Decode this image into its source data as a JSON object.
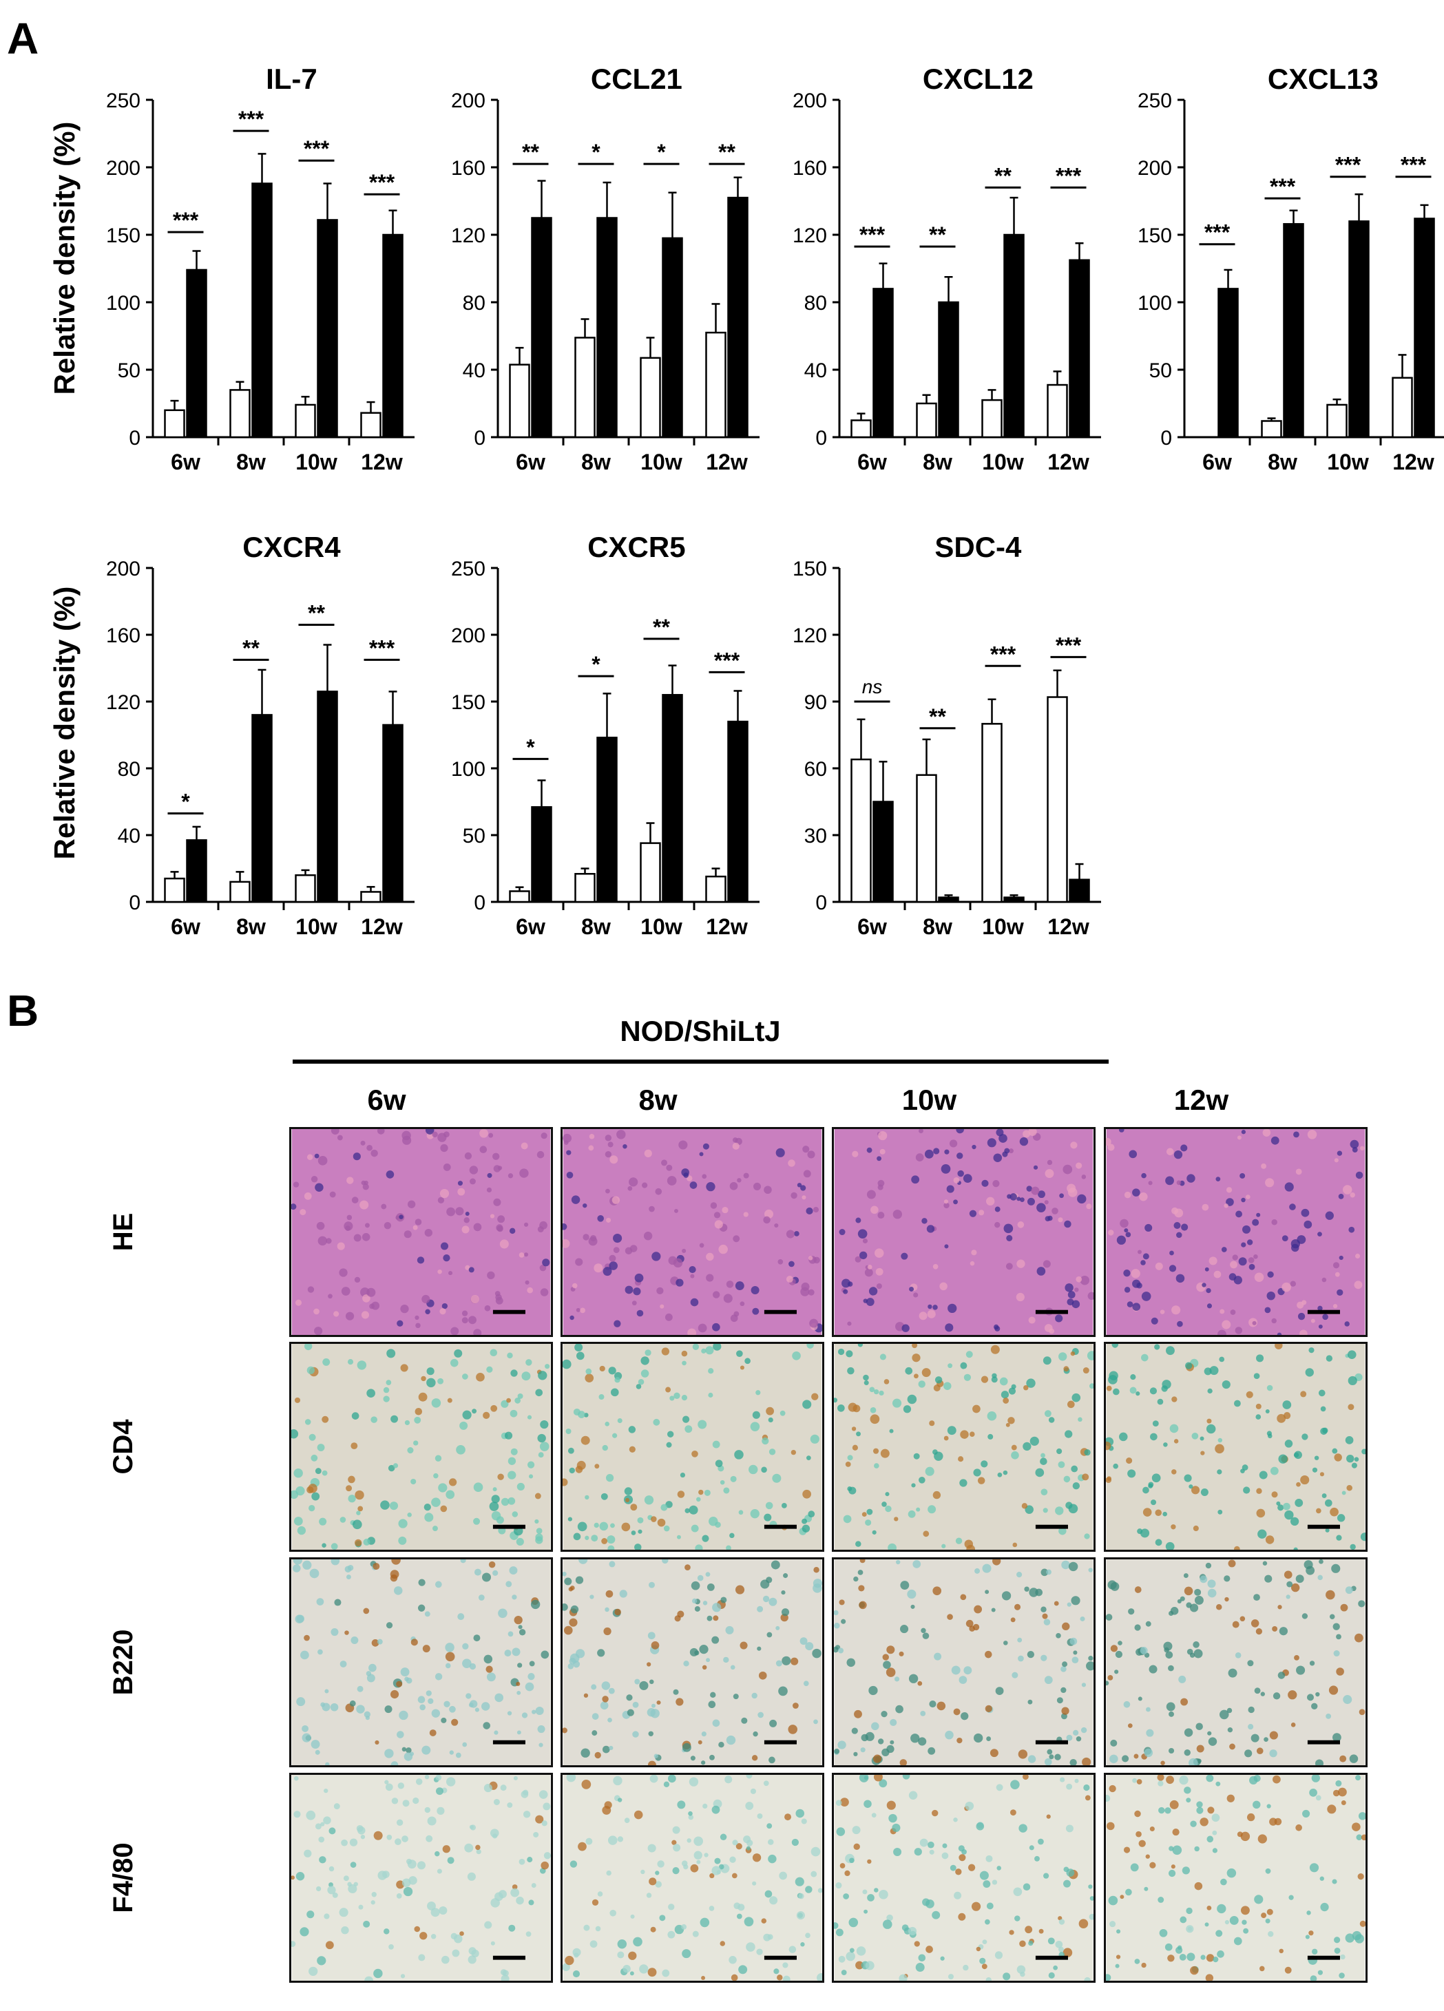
{
  "panel_labels": {
    "a": "A",
    "b": "B"
  },
  "ylabel": "Relative density (%)",
  "categories": [
    "6w",
    "8w",
    "10w",
    "12w"
  ],
  "chart_data": [
    {
      "type": "bar",
      "title": "IL-7",
      "ylim": [
        0,
        250
      ],
      "ticks": [
        0,
        50,
        100,
        150,
        200,
        250
      ],
      "categories": [
        "6w",
        "8w",
        "10w",
        "12w"
      ],
      "series": [
        {
          "values": [
            20,
            35,
            24,
            18
          ],
          "errors": [
            7,
            6,
            6,
            8
          ],
          "fill": "#ffffff"
        },
        {
          "values": [
            124,
            188,
            161,
            150
          ],
          "errors": [
            14,
            22,
            27,
            18
          ],
          "fill": "#000000"
        }
      ],
      "significance": [
        "***",
        "***",
        "***",
        "***"
      ],
      "sig_levels": [
        152,
        227,
        205,
        180
      ]
    },
    {
      "type": "bar",
      "title": "CCL21",
      "ylim": [
        0,
        200
      ],
      "ticks": [
        0,
        40,
        80,
        120,
        160,
        200
      ],
      "categories": [
        "6w",
        "8w",
        "10w",
        "12w"
      ],
      "series": [
        {
          "values": [
            43,
            59,
            47,
            62
          ],
          "errors": [
            10,
            11,
            12,
            17
          ],
          "fill": "#ffffff"
        },
        {
          "values": [
            130,
            130,
            118,
            142
          ],
          "errors": [
            22,
            21,
            27,
            12
          ],
          "fill": "#000000"
        }
      ],
      "significance": [
        "**",
        "*",
        "*",
        "**"
      ],
      "sig_levels": [
        162,
        162,
        162,
        162
      ]
    },
    {
      "type": "bar",
      "title": "CXCL12",
      "ylim": [
        0,
        200
      ],
      "ticks": [
        0,
        40,
        80,
        120,
        160,
        200
      ],
      "categories": [
        "6w",
        "8w",
        "10w",
        "12w"
      ],
      "series": [
        {
          "values": [
            10,
            20,
            22,
            31
          ],
          "errors": [
            4,
            5,
            6,
            8
          ],
          "fill": "#ffffff"
        },
        {
          "values": [
            88,
            80,
            120,
            105
          ],
          "errors": [
            15,
            15,
            22,
            10
          ],
          "fill": "#000000"
        }
      ],
      "significance": [
        "***",
        "**",
        "**",
        "***"
      ],
      "sig_levels": [
        113,
        113,
        148,
        148
      ]
    },
    {
      "type": "bar",
      "title": "CXCL13",
      "ylim": [
        0,
        250
      ],
      "ticks": [
        0,
        50,
        100,
        150,
        200,
        250
      ],
      "categories": [
        "6w",
        "8w",
        "10w",
        "12w"
      ],
      "series": [
        {
          "values": [
            0,
            12,
            24,
            44
          ],
          "errors": [
            0,
            2,
            4,
            17
          ],
          "fill": "#ffffff"
        },
        {
          "values": [
            110,
            158,
            160,
            162
          ],
          "errors": [
            14,
            10,
            20,
            10
          ],
          "fill": "#000000"
        }
      ],
      "significance": [
        "***",
        "***",
        "***",
        "***"
      ],
      "sig_levels": [
        143,
        177,
        193,
        193
      ]
    },
    {
      "type": "bar",
      "title": "CXCR4",
      "ylim": [
        0,
        200
      ],
      "ticks": [
        0,
        40,
        80,
        120,
        160,
        200
      ],
      "categories": [
        "6w",
        "8w",
        "10w",
        "12w"
      ],
      "series": [
        {
          "values": [
            14,
            12,
            16,
            6
          ],
          "errors": [
            4,
            6,
            3,
            3
          ],
          "fill": "#ffffff"
        },
        {
          "values": [
            37,
            112,
            126,
            106
          ],
          "errors": [
            8,
            27,
            28,
            20
          ],
          "fill": "#000000"
        }
      ],
      "significance": [
        "*",
        "**",
        "**",
        "***"
      ],
      "sig_levels": [
        53,
        145,
        166,
        145
      ]
    },
    {
      "type": "bar",
      "title": "CXCR5",
      "ylim": [
        0,
        250
      ],
      "ticks": [
        0,
        50,
        100,
        150,
        200,
        250
      ],
      "categories": [
        "6w",
        "8w",
        "10w",
        "12w"
      ],
      "series": [
        {
          "values": [
            8,
            21,
            44,
            19
          ],
          "errors": [
            3,
            4,
            15,
            6
          ],
          "fill": "#ffffff"
        },
        {
          "values": [
            71,
            123,
            155,
            135
          ],
          "errors": [
            20,
            33,
            22,
            23
          ],
          "fill": "#000000"
        }
      ],
      "significance": [
        "*",
        "*",
        "**",
        "***"
      ],
      "sig_levels": [
        107,
        169,
        197,
        172
      ]
    },
    {
      "type": "bar",
      "title": "SDC-4",
      "ylim": [
        0,
        150
      ],
      "ticks": [
        0,
        30,
        60,
        90,
        120,
        150
      ],
      "categories": [
        "6w",
        "8w",
        "10w",
        "12w"
      ],
      "series": [
        {
          "values": [
            64,
            57,
            80,
            92
          ],
          "errors": [
            18,
            16,
            11,
            12
          ],
          "fill": "#ffffff"
        },
        {
          "values": [
            45,
            2,
            2,
            10
          ],
          "errors": [
            18,
            1,
            1,
            7
          ],
          "fill": "#000000"
        }
      ],
      "significance": [
        "ns",
        "**",
        "***",
        "***"
      ],
      "sig_levels": [
        90,
        78,
        106,
        110
      ]
    }
  ],
  "panel_b": {
    "strain": "NOD/ShiLtJ",
    "columns": [
      "6w",
      "8w",
      "10w",
      "12w"
    ],
    "rows": [
      "HE",
      "CD4",
      "B220",
      "F4/80"
    ],
    "colors": {
      "HE": {
        "base": "#c97fbf",
        "mid": "#a45aa5",
        "dark": "#3f2d8f",
        "accent": "#e8a0c0"
      },
      "CD4": {
        "base": "#ddd9cc",
        "mid": "#6fc9b7",
        "dark": "#2fa592",
        "accent": "#b7762c"
      },
      "B220": {
        "base": "#e0ddd5",
        "mid": "#8ec8c8",
        "dark": "#3f8a7c",
        "accent": "#a9611f"
      },
      "F4/80": {
        "base": "#e6e6dc",
        "mid": "#a5d6cf",
        "dark": "#5fb9ad",
        "accent": "#b36b26"
      }
    }
  }
}
